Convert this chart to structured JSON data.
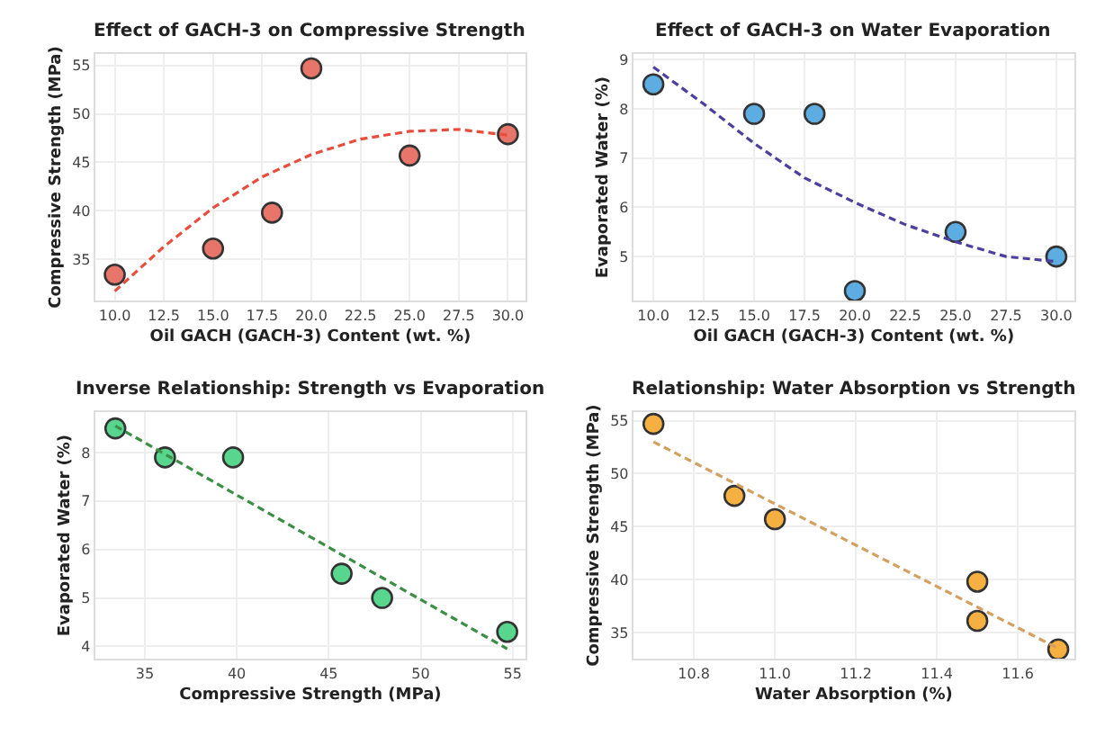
{
  "chart_data": [
    {
      "type": "scatter",
      "title": "Effect of GACH-3 on Compressive Strength",
      "xlabel": "Oil GACH (GACH-3) Content (wt. %)",
      "ylabel": "Compressive Strength (MPa)",
      "xlim": [
        9.0,
        30.9
      ],
      "ylim": [
        30.7,
        56.2
      ],
      "xticks": [
        {
          "value": 10,
          "label": "10.0"
        },
        12.5,
        {
          "value": 15,
          "label": "15.0"
        },
        17.5,
        {
          "value": 20,
          "label": "20.0"
        },
        22.5,
        {
          "value": 25,
          "label": "25.0"
        },
        27.5,
        {
          "value": 30,
          "label": "30.0"
        }
      ],
      "yticks": [
        35,
        40,
        45,
        50,
        55
      ],
      "grid": true,
      "series": [
        {
          "marker": "circle",
          "color": "#e8756a",
          "x": [
            10,
            15,
            18,
            20,
            25,
            30
          ],
          "values": [
            33.4,
            36.1,
            39.8,
            54.7,
            45.7,
            47.9
          ]
        },
        {
          "type": "line",
          "marker": "none",
          "line_style": "dashed",
          "color": "#e74c3c",
          "x": [
            10,
            12.5,
            15,
            17.5,
            20,
            22.5,
            25,
            27.5,
            30
          ],
          "values": [
            31.7,
            36.3,
            40.3,
            43.5,
            45.8,
            47.4,
            48.2,
            48.4,
            47.8
          ]
        }
      ]
    },
    {
      "type": "scatter",
      "title": "Effect of GACH-3 on Water Evaporation",
      "xlabel": "Oil GACH (GACH-3) Content (wt. %)",
      "ylabel": "Evaporated Water (%)",
      "xlim": [
        9.0,
        30.9
      ],
      "ylim": [
        4.1,
        9.12
      ],
      "xticks": [
        {
          "value": 10,
          "label": "10.0"
        },
        12.5,
        {
          "value": 15,
          "label": "15.0"
        },
        17.5,
        {
          "value": 20,
          "label": "20.0"
        },
        22.5,
        {
          "value": 25,
          "label": "25.0"
        },
        27.5,
        {
          "value": 30,
          "label": "30.0"
        }
      ],
      "yticks": [
        5,
        6,
        7,
        8,
        9
      ],
      "grid": true,
      "series": [
        {
          "marker": "circle",
          "color": "#5dade2",
          "x": [
            10,
            15,
            18,
            20,
            25,
            30
          ],
          "values": [
            8.5,
            7.9,
            7.9,
            4.3,
            5.5,
            5.0
          ]
        },
        {
          "type": "line",
          "marker": "none",
          "line_style": "dashed",
          "color": "#4b3f9e",
          "x": [
            10,
            12.5,
            15,
            17.5,
            20,
            22.5,
            25,
            27.5,
            30
          ],
          "values": [
            8.85,
            8.1,
            7.3,
            6.6,
            6.1,
            5.65,
            5.3,
            5.0,
            4.9
          ]
        }
      ]
    },
    {
      "type": "scatter",
      "title": "Inverse Relationship: Strength vs Evaporation",
      "xlabel": "Compressive Strength (MPa)",
      "ylabel": "Evaporated Water (%)",
      "xlim": [
        32.3,
        55.7
      ],
      "ylim": [
        3.74,
        8.84
      ],
      "xticks": [
        35,
        40,
        45,
        50,
        55
      ],
      "yticks": [
        4,
        5,
        6,
        7,
        8
      ],
      "grid": true,
      "series": [
        {
          "marker": "circle",
          "color": "#58d68d",
          "x": [
            33.4,
            36.1,
            39.8,
            54.7,
            45.7,
            47.9
          ],
          "values": [
            8.5,
            7.9,
            7.9,
            4.3,
            5.5,
            5.0
          ]
        },
        {
          "type": "line",
          "marker": "none",
          "line_style": "dashed",
          "color": "#3a8f44",
          "x": [
            33.4,
            54.7
          ],
          "values": [
            8.55,
            3.95
          ]
        }
      ]
    },
    {
      "type": "scatter",
      "title": "Relationship: Water Absorption vs Strength",
      "xlabel": "Water Absorption (%)",
      "ylabel": "Compressive Strength (MPa)",
      "xlim": [
        10.65,
        11.74
      ],
      "ylim": [
        32.5,
        55.83
      ],
      "xticks": [
        10.8,
        {
          "value": 11.0,
          "label": "11.0"
        },
        11.2,
        11.4,
        11.6
      ],
      "yticks": [
        35,
        40,
        45,
        50,
        55
      ],
      "grid": true,
      "series": [
        {
          "marker": "circle",
          "color": "#f5b041",
          "x": [
            10.7,
            10.9,
            11.0,
            11.5,
            11.5,
            11.7
          ],
          "values": [
            54.7,
            47.9,
            45.7,
            39.8,
            36.1,
            33.4
          ]
        },
        {
          "type": "line",
          "marker": "none",
          "line_style": "dashed",
          "color": "#d4a060",
          "x": [
            10.7,
            11.7
          ],
          "values": [
            53.0,
            33.5
          ]
        }
      ]
    }
  ]
}
